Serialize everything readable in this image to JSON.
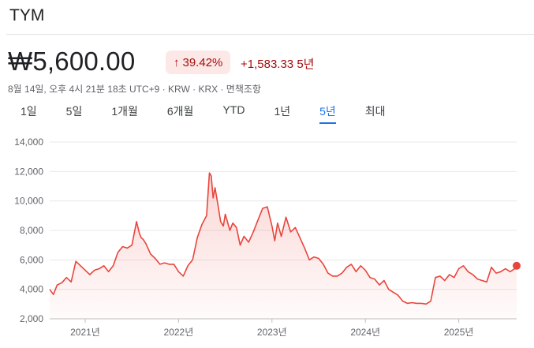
{
  "header": {
    "title": "TYM"
  },
  "quote": {
    "price": "₩5,600.00",
    "percent_change": "39.42%",
    "change_arrow_icon": "arrow-up-icon",
    "absolute_change": "+1,583.33 5년",
    "meta": "8월 14일, 오후 4시 21분 18초 UTC+9 · KRW · KRX · 면책조항"
  },
  "tabs": [
    {
      "label": "1일",
      "active": false
    },
    {
      "label": "5일",
      "active": false
    },
    {
      "label": "1개월",
      "active": false
    },
    {
      "label": "6개월",
      "active": false
    },
    {
      "label": "YTD",
      "active": false
    },
    {
      "label": "1년",
      "active": false
    },
    {
      "label": "5년",
      "active": true
    },
    {
      "label": "최대",
      "active": false
    }
  ],
  "colors": {
    "line": "#e8453c",
    "fill": "#e8453c",
    "accent": "#1a73e8",
    "negative_text": "#a50e0e"
  },
  "chart_data": {
    "type": "area",
    "title": "",
    "xlabel": "",
    "ylabel": "",
    "ylim": [
      2000,
      14000
    ],
    "y_ticks": [
      "2,000",
      "4,000",
      "6,000",
      "8,000",
      "10,000",
      "12,000",
      "14,000"
    ],
    "x_ticks": [
      "2021년",
      "2022년",
      "2023년",
      "2024년",
      "2025년"
    ],
    "grid": true,
    "x": [
      2020.62,
      2020.66,
      2020.7,
      2020.75,
      2020.8,
      2020.85,
      2020.9,
      2020.95,
      2021.0,
      2021.05,
      2021.1,
      2021.15,
      2021.2,
      2021.25,
      2021.3,
      2021.35,
      2021.4,
      2021.45,
      2021.5,
      2021.55,
      2021.58,
      2021.6,
      2021.62,
      2021.65,
      2021.7,
      2021.75,
      2021.8,
      2021.85,
      2021.9,
      2021.95,
      2022.0,
      2022.05,
      2022.1,
      2022.15,
      2022.2,
      2022.25,
      2022.3,
      2022.33,
      2022.35,
      2022.37,
      2022.39,
      2022.42,
      2022.45,
      2022.48,
      2022.5,
      2022.55,
      2022.58,
      2022.62,
      2022.66,
      2022.7,
      2022.75,
      2022.8,
      2022.85,
      2022.9,
      2022.95,
      2023.0,
      2023.03,
      2023.06,
      2023.1,
      2023.15,
      2023.2,
      2023.25,
      2023.3,
      2023.35,
      2023.4,
      2023.45,
      2023.5,
      2023.55,
      2023.6,
      2023.65,
      2023.7,
      2023.75,
      2023.8,
      2023.85,
      2023.9,
      2023.95,
      2024.0,
      2024.05,
      2024.1,
      2024.15,
      2024.2,
      2024.25,
      2024.3,
      2024.35,
      2024.4,
      2024.45,
      2024.5,
      2024.55,
      2024.6,
      2024.65,
      2024.7,
      2024.75,
      2024.8,
      2024.85,
      2024.9,
      2024.95,
      2025.0,
      2025.05,
      2025.1,
      2025.15,
      2025.2,
      2025.25,
      2025.3,
      2025.35,
      2025.4,
      2025.45,
      2025.5,
      2025.55,
      2025.6,
      2025.62
    ],
    "y": [
      4000,
      3650,
      4300,
      4450,
      4800,
      4500,
      5900,
      5600,
      5300,
      5000,
      5300,
      5400,
      5600,
      5200,
      5600,
      6500,
      6900,
      6800,
      7000,
      8600,
      7800,
      7500,
      7400,
      7100,
      6400,
      6100,
      5700,
      5800,
      5700,
      5700,
      5200,
      4900,
      5600,
      6000,
      7500,
      8400,
      9000,
      11900,
      11700,
      10200,
      10900,
      9800,
      8600,
      8300,
      9100,
      8000,
      8500,
      8200,
      7000,
      7600,
      7200,
      7900,
      8700,
      9500,
      9600,
      8300,
      7300,
      8500,
      7600,
      8900,
      7900,
      8200,
      7500,
      6800,
      6000,
      6200,
      6100,
      5700,
      5100,
      4900,
      4900,
      5100,
      5500,
      5700,
      5200,
      5600,
      5300,
      4800,
      4700,
      4300,
      4600,
      4000,
      3800,
      3600,
      3200,
      3050,
      3100,
      3050,
      3050,
      3000,
      3200,
      4800,
      4900,
      4600,
      5000,
      4800,
      5400,
      5600,
      5200,
      5000,
      4700,
      4600,
      4500,
      5500,
      5100,
      5200,
      5400,
      5200,
      5400,
      5600
    ]
  }
}
